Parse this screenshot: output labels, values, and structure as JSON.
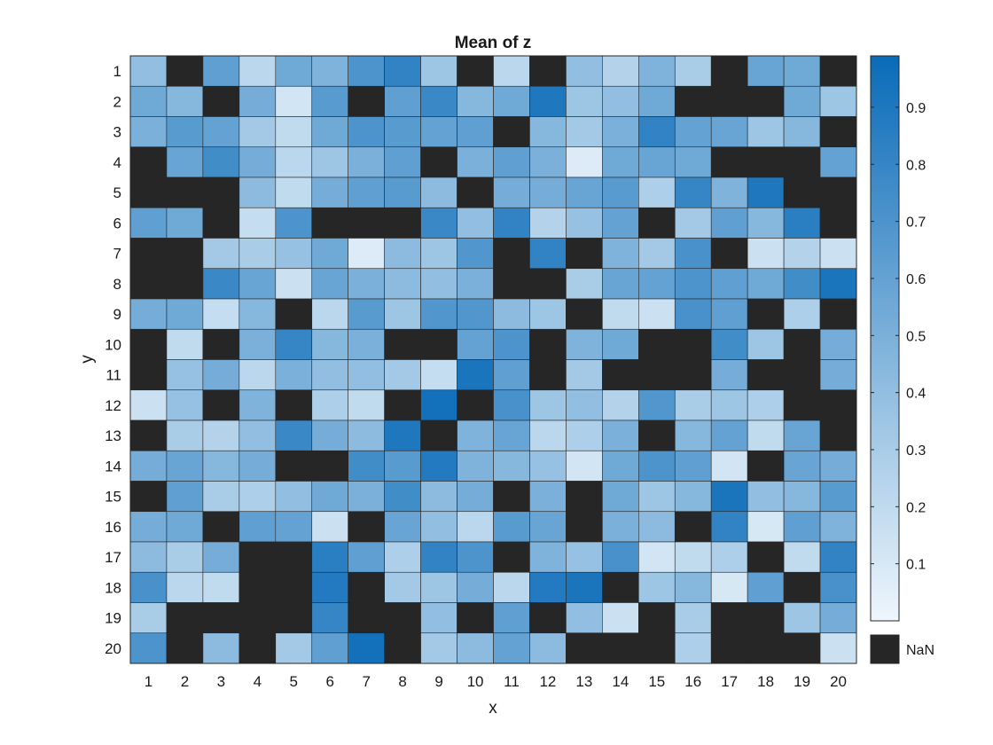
{
  "chart_data": {
    "type": "heatmap",
    "title": "Mean of z",
    "xlabel": "x",
    "ylabel": "y",
    "x_categories": [
      "1",
      "2",
      "3",
      "4",
      "5",
      "6",
      "7",
      "8",
      "9",
      "10",
      "11",
      "12",
      "13",
      "14",
      "15",
      "16",
      "17",
      "18",
      "19",
      "20"
    ],
    "y_categories": [
      "1",
      "2",
      "3",
      "4",
      "5",
      "6",
      "7",
      "8",
      "9",
      "10",
      "11",
      "12",
      "13",
      "14",
      "15",
      "16",
      "17",
      "18",
      "19",
      "20"
    ],
    "values": [
      [
        0.4,
        null,
        0.62,
        0.22,
        0.55,
        0.48,
        0.7,
        0.82,
        0.35,
        null,
        0.22,
        null,
        0.4,
        0.25,
        0.48,
        0.3,
        null,
        0.58,
        0.55,
        null
      ],
      [
        0.55,
        0.45,
        null,
        0.52,
        0.12,
        0.65,
        null,
        0.62,
        0.78,
        0.45,
        0.55,
        0.9,
        0.35,
        0.4,
        0.55,
        null,
        null,
        null,
        0.55,
        0.35
      ],
      [
        0.5,
        0.65,
        0.6,
        0.32,
        0.2,
        0.55,
        0.7,
        0.65,
        0.6,
        0.62,
        null,
        0.45,
        0.32,
        0.5,
        0.82,
        0.6,
        0.58,
        0.35,
        0.45,
        null
      ],
      [
        null,
        0.58,
        0.75,
        0.52,
        0.22,
        0.35,
        0.5,
        0.62,
        null,
        0.5,
        0.62,
        0.5,
        0.08,
        0.55,
        0.58,
        0.55,
        null,
        null,
        null,
        0.6
      ],
      [
        null,
        null,
        null,
        0.42,
        0.2,
        0.52,
        0.62,
        0.65,
        0.42,
        null,
        0.52,
        0.52,
        0.58,
        0.65,
        0.28,
        0.8,
        0.48,
        0.9,
        null,
        null
      ],
      [
        0.62,
        0.55,
        null,
        0.18,
        0.7,
        null,
        null,
        null,
        0.78,
        0.4,
        0.82,
        0.25,
        0.38,
        0.6,
        null,
        0.32,
        0.62,
        0.45,
        0.85,
        null
      ],
      [
        null,
        null,
        0.32,
        0.3,
        0.38,
        0.55,
        0.08,
        0.42,
        0.35,
        0.68,
        null,
        0.82,
        null,
        0.48,
        0.32,
        0.72,
        null,
        0.15,
        0.25,
        0.15
      ],
      [
        null,
        null,
        0.78,
        0.58,
        0.15,
        0.58,
        0.5,
        0.42,
        0.4,
        0.5,
        null,
        null,
        0.3,
        0.58,
        0.6,
        0.7,
        0.62,
        0.55,
        0.75,
        0.92
      ],
      [
        0.52,
        0.55,
        0.18,
        0.45,
        null,
        0.22,
        0.65,
        0.35,
        0.68,
        0.68,
        0.42,
        0.35,
        null,
        0.2,
        0.15,
        0.72,
        0.62,
        null,
        0.28,
        null
      ],
      [
        null,
        0.2,
        null,
        0.5,
        0.8,
        0.45,
        0.5,
        null,
        null,
        0.6,
        0.7,
        null,
        0.48,
        0.55,
        null,
        null,
        0.75,
        0.35,
        null,
        0.52
      ],
      [
        null,
        0.38,
        0.52,
        0.22,
        0.5,
        0.4,
        0.4,
        0.32,
        0.18,
        0.92,
        0.62,
        null,
        0.32,
        null,
        null,
        null,
        0.52,
        null,
        null,
        0.52
      ],
      [
        0.15,
        0.38,
        null,
        0.48,
        null,
        0.28,
        0.2,
        null,
        0.95,
        null,
        0.72,
        0.35,
        0.4,
        0.25,
        0.68,
        0.3,
        0.35,
        0.28,
        null,
        null
      ],
      [
        null,
        0.3,
        0.25,
        0.4,
        0.78,
        0.52,
        0.42,
        0.9,
        null,
        0.48,
        0.58,
        0.22,
        0.28,
        0.5,
        null,
        0.45,
        0.6,
        0.2,
        0.58,
        null
      ],
      [
        0.52,
        0.58,
        0.45,
        0.52,
        null,
        null,
        0.75,
        0.65,
        0.88,
        0.48,
        0.45,
        0.38,
        0.12,
        0.55,
        0.7,
        0.62,
        0.12,
        null,
        0.58,
        0.52
      ],
      [
        null,
        0.62,
        0.3,
        0.28,
        0.4,
        0.55,
        0.5,
        0.75,
        0.42,
        0.52,
        null,
        0.5,
        null,
        0.55,
        0.35,
        0.45,
        0.92,
        0.4,
        0.45,
        0.65
      ],
      [
        0.52,
        0.55,
        null,
        0.62,
        0.6,
        0.15,
        null,
        0.58,
        0.4,
        0.22,
        0.65,
        0.58,
        null,
        0.5,
        0.42,
        null,
        0.82,
        0.1,
        0.62,
        0.48
      ],
      [
        0.42,
        0.3,
        0.52,
        null,
        null,
        0.85,
        0.62,
        0.28,
        0.82,
        0.7,
        null,
        0.48,
        0.38,
        0.72,
        0.12,
        0.2,
        0.28,
        null,
        0.2,
        0.82
      ],
      [
        0.72,
        0.22,
        0.2,
        null,
        null,
        0.88,
        null,
        0.32,
        0.35,
        0.52,
        0.22,
        0.88,
        0.92,
        null,
        0.35,
        0.45,
        0.1,
        0.62,
        null,
        0.72
      ],
      [
        0.3,
        null,
        null,
        null,
        null,
        0.8,
        null,
        null,
        0.4,
        null,
        0.62,
        null,
        0.4,
        0.15,
        null,
        0.3,
        null,
        null,
        0.35,
        0.52
      ],
      [
        0.7,
        null,
        0.42,
        null,
        0.32,
        0.62,
        0.95,
        null,
        0.32,
        0.42,
        0.6,
        0.42,
        null,
        null,
        null,
        0.28,
        null,
        null,
        null,
        0.15
      ]
    ],
    "colorbar": {
      "range": [
        0.0,
        0.99
      ],
      "ticks": [
        "0.1",
        "0.2",
        "0.3",
        "0.4",
        "0.5",
        "0.6",
        "0.7",
        "0.8",
        "0.9"
      ],
      "tick_values": [
        0.1,
        0.2,
        0.3,
        0.4,
        0.5,
        0.6,
        0.7,
        0.8,
        0.9
      ],
      "colormap": [
        "#eef6fc",
        "#0a6bb8"
      ],
      "missing_label": "NaN",
      "missing_color": "#262626"
    },
    "grid": false,
    "legend": "right"
  }
}
